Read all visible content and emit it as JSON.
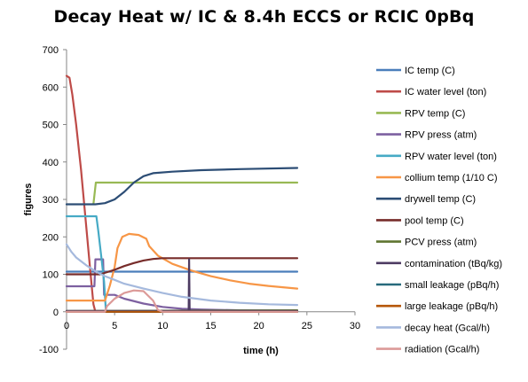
{
  "chart_data": {
    "type": "line",
    "title": "Decay Heat w/ IC & 8.4h ECCS or RCIC  0pBq",
    "xlabel": "time (h)",
    "ylabel": "figures",
    "xlim": [
      0,
      30
    ],
    "ylim": [
      -100,
      700
    ],
    "x_ticks": [
      "0",
      "5",
      "10",
      "15",
      "20",
      "25",
      "30"
    ],
    "y_ticks": [
      "-100",
      "0",
      "100",
      "200",
      "300",
      "400",
      "500",
      "600",
      "700"
    ],
    "grid": "none",
    "legend_position": "right",
    "series": [
      {
        "name": "IC temp (C)",
        "color": "#4a7ebb",
        "points": [
          [
            0,
            107
          ],
          [
            24,
            107
          ]
        ]
      },
      {
        "name": "IC water level (ton)",
        "color": "#be4b48",
        "points": [
          [
            0,
            630
          ],
          [
            0.3,
            625
          ],
          [
            0.6,
            580
          ],
          [
            1,
            500
          ],
          [
            1.5,
            380
          ],
          [
            2,
            240
          ],
          [
            2.5,
            100
          ],
          [
            2.8,
            20
          ],
          [
            3,
            0
          ],
          [
            24,
            0
          ]
        ]
      },
      {
        "name": "RPV temp (C)",
        "color": "#98b954",
        "points": [
          [
            2.8,
            288
          ],
          [
            3.05,
            345
          ],
          [
            24,
            345
          ]
        ]
      },
      {
        "name": "RPV press (atm)",
        "color": "#7d60a0",
        "points": [
          [
            0,
            68
          ],
          [
            2.9,
            68
          ],
          [
            3.0,
            140
          ],
          [
            3.8,
            140
          ],
          [
            3.9,
            45
          ],
          [
            5,
            45
          ],
          [
            6,
            35
          ],
          [
            8,
            22
          ],
          [
            10,
            13
          ],
          [
            12,
            8
          ],
          [
            14,
            6
          ],
          [
            18,
            4
          ],
          [
            24,
            3
          ]
        ]
      },
      {
        "name": "RPV water level (ton)",
        "color": "#46aac5",
        "points": [
          [
            0,
            255
          ],
          [
            3.1,
            255
          ],
          [
            3.3,
            215
          ],
          [
            3.6,
            150
          ],
          [
            3.9,
            80
          ],
          [
            4.1,
            0
          ],
          [
            24,
            0
          ]
        ]
      },
      {
        "name": "collium temp (1/10 C)",
        "color": "#f79646",
        "points": [
          [
            0,
            30
          ],
          [
            4.0,
            30
          ],
          [
            4.5,
            70
          ],
          [
            5,
            120
          ],
          [
            5.3,
            170
          ],
          [
            5.8,
            200
          ],
          [
            6.5,
            208
          ],
          [
            7.5,
            205
          ],
          [
            8.3,
            195
          ],
          [
            8.6,
            175
          ],
          [
            9.5,
            150
          ],
          [
            11,
            128
          ],
          [
            13,
            110
          ],
          [
            15,
            95
          ],
          [
            17,
            84
          ],
          [
            19,
            75
          ],
          [
            21,
            69
          ],
          [
            24,
            62
          ]
        ]
      },
      {
        "name": "drywell temp (C)",
        "color": "#2c4d75",
        "points": [
          [
            0,
            287
          ],
          [
            3,
            287
          ],
          [
            4,
            290
          ],
          [
            5,
            300
          ],
          [
            6,
            320
          ],
          [
            7,
            345
          ],
          [
            8,
            362
          ],
          [
            9,
            370
          ],
          [
            11,
            374
          ],
          [
            14,
            378
          ],
          [
            18,
            381
          ],
          [
            24,
            384
          ]
        ]
      },
      {
        "name": "pool temp (C)",
        "color": "#772c2a",
        "points": [
          [
            0,
            100
          ],
          [
            3.5,
            100
          ],
          [
            5,
            112
          ],
          [
            6,
            122
          ],
          [
            7,
            130
          ],
          [
            8,
            137
          ],
          [
            9,
            141
          ],
          [
            10,
            143
          ],
          [
            24,
            143
          ]
        ]
      },
      {
        "name": "PCV press (atm)",
        "color": "#5f7530",
        "points": [
          [
            0,
            2
          ],
          [
            24,
            4
          ]
        ]
      },
      {
        "name": "contamination (tBq/kg)",
        "color": "#4d3b62",
        "points": [
          [
            0,
            2
          ],
          [
            12.7,
            2
          ],
          [
            12.75,
            140
          ],
          [
            12.8,
            2
          ],
          [
            24,
            2
          ]
        ]
      },
      {
        "name": "small leakage (pBq/h)",
        "color": "#276a7c",
        "points": [
          [
            0,
            0
          ],
          [
            24,
            0
          ]
        ]
      },
      {
        "name": "large leakage (pBq/h)",
        "color": "#b65708",
        "points": [
          [
            0,
            0
          ],
          [
            24,
            0
          ]
        ]
      },
      {
        "name": "decay heat (Gcal/h)",
        "color": "#a5b9dd",
        "points": [
          [
            0,
            180
          ],
          [
            0.5,
            160
          ],
          [
            1,
            145
          ],
          [
            2,
            125
          ],
          [
            3,
            108
          ],
          [
            4,
            95
          ],
          [
            5,
            85
          ],
          [
            6,
            75
          ],
          [
            8,
            62
          ],
          [
            10,
            50
          ],
          [
            12,
            40
          ],
          [
            15,
            30
          ],
          [
            18,
            24
          ],
          [
            21,
            20
          ],
          [
            24,
            18
          ]
        ]
      },
      {
        "name": "radiation (Gcal/h)",
        "color": "#dc9a98",
        "points": [
          [
            0,
            0
          ],
          [
            4,
            0
          ],
          [
            4.2,
            15
          ],
          [
            5,
            35
          ],
          [
            6,
            50
          ],
          [
            7,
            57
          ],
          [
            8,
            55
          ],
          [
            9,
            30
          ],
          [
            9.5,
            5
          ],
          [
            10,
            0
          ],
          [
            24,
            0
          ]
        ]
      }
    ]
  }
}
